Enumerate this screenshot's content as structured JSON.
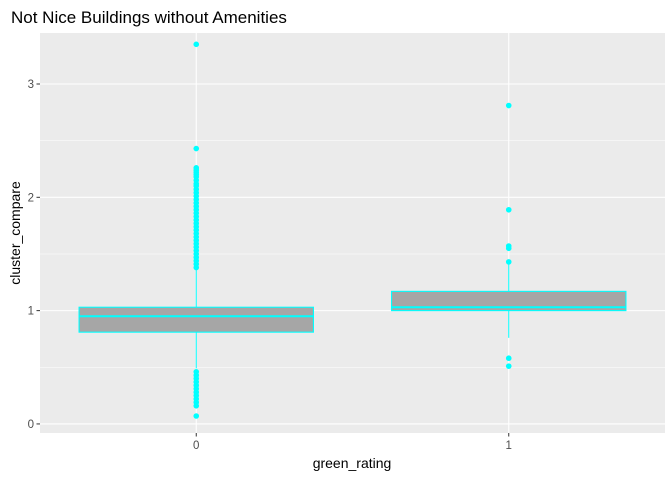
{
  "chart_data": {
    "type": "boxplot",
    "title": "Not Nice Buildings without Amenities",
    "xlabel": "green_rating",
    "ylabel": "cluster_compare",
    "categories": [
      "0",
      "1"
    ],
    "y_ticks": [
      "0",
      "1",
      "2",
      "3"
    ],
    "ylim": [
      -0.08,
      3.45
    ],
    "grid": true,
    "colors": {
      "panel": "#ebebeb",
      "grid": "#ffffff",
      "box_fill": "#a6a6a6",
      "box_outline": "#00ffff",
      "outlier": "#00ffff",
      "tick_text": "#4d4d4d",
      "tick_mark": "#333333"
    },
    "boxes": [
      {
        "category": "0",
        "q1": 0.81,
        "median": 0.95,
        "q3": 1.03,
        "whisker_low": 0.49,
        "whisker_high": 1.36,
        "outliers": [
          3.35,
          2.43,
          2.26,
          2.24,
          2.22,
          2.2,
          2.18,
          2.15,
          2.12,
          2.1,
          2.07,
          2.04,
          2.01,
          1.98,
          1.95,
          1.92,
          1.89,
          1.86,
          1.83,
          1.8,
          1.77,
          1.74,
          1.71,
          1.68,
          1.65,
          1.62,
          1.59,
          1.56,
          1.53,
          1.5,
          1.47,
          1.44,
          1.41,
          1.38,
          0.46,
          0.43,
          0.4,
          0.37,
          0.34,
          0.31,
          0.28,
          0.25,
          0.22,
          0.19,
          0.16,
          0.07
        ]
      },
      {
        "category": "1",
        "q1": 1.0,
        "median": 1.03,
        "q3": 1.17,
        "whisker_low": 0.76,
        "whisker_high": 1.43,
        "outliers": [
          2.81,
          1.89,
          1.57,
          1.55,
          1.43,
          0.58,
          0.51
        ]
      }
    ]
  }
}
